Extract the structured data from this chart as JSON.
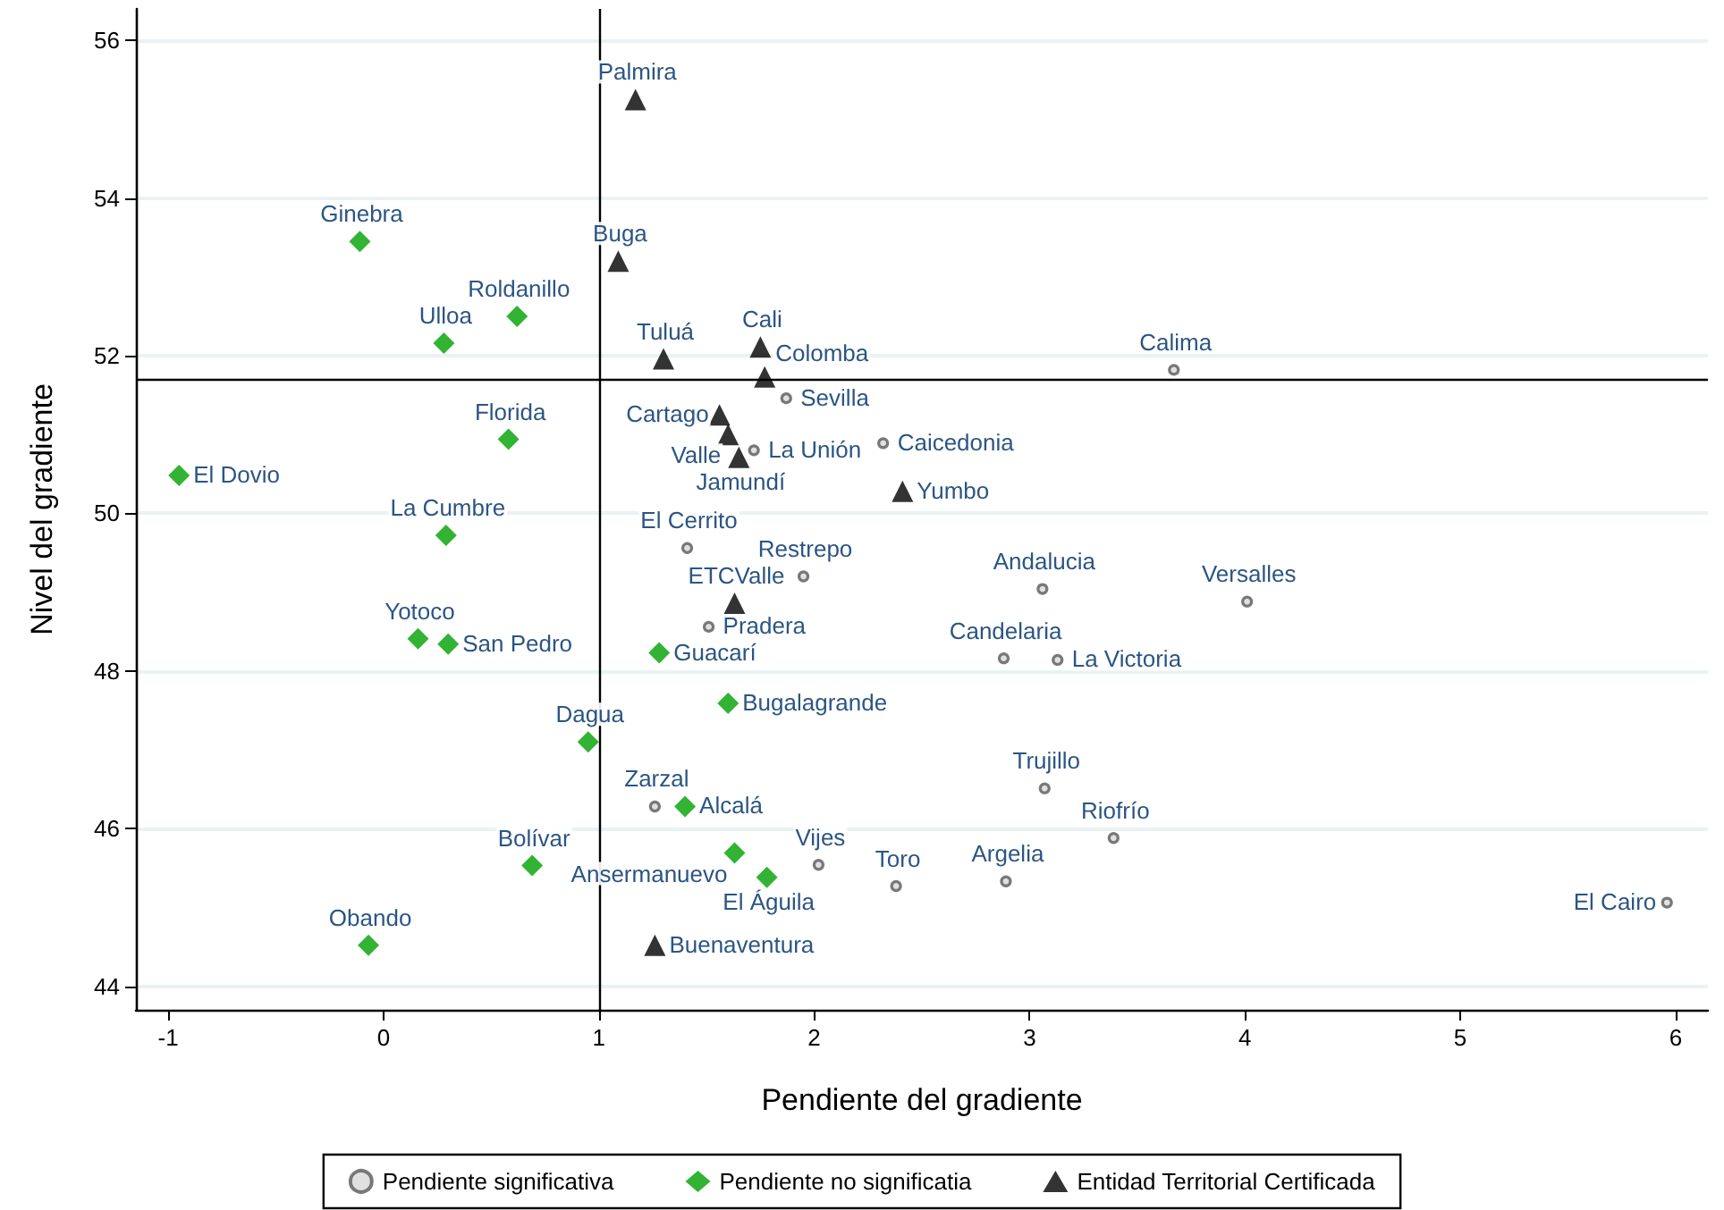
{
  "chart_data": {
    "type": "scatter",
    "xlabel": "Pendiente del gradiente",
    "ylabel": "Nivel del gradiente",
    "xlim": [
      -1.15,
      6.15
    ],
    "xticks": [
      -1,
      0,
      1,
      2,
      3,
      4,
      5,
      6
    ],
    "ylim": [
      43.7,
      56.4
    ],
    "yticks": [
      44,
      46,
      48,
      50,
      52,
      54,
      56
    ],
    "grid": "y",
    "legend": "bottom",
    "ref_lines": [
      {
        "axis": "x",
        "value": 1,
        "color": "#000000"
      },
      {
        "axis": "y",
        "value": 51.7,
        "color": "#000000"
      }
    ],
    "series": [
      {
        "name": "Pendiente significativa",
        "color": "#5a5a5a",
        "marker": "circle",
        "x": [
          3.67,
          1.87,
          2.32,
          1.72,
          1.41,
          1.95,
          1.51,
          3.06,
          4.01,
          2.88,
          3.13,
          3.07,
          3.39,
          1.26,
          2.02,
          2.38,
          2.89,
          5.96
        ],
        "values": [
          51.82,
          51.46,
          50.89,
          50.8,
          49.56,
          49.2,
          48.56,
          49.04,
          48.88,
          48.16,
          48.14,
          46.51,
          45.88,
          46.28,
          45.54,
          45.27,
          45.33,
          45.06
        ]
      },
      {
        "name": "Pendiente no significatia",
        "color": "#00a000",
        "marker": "diamond",
        "x": [
          -0.11,
          0.62,
          0.28,
          0.58,
          -0.95,
          0.29,
          0.16,
          0.3,
          0.95,
          0.69,
          -0.07,
          1.28,
          1.6,
          1.4,
          1.63,
          1.78
        ],
        "values": [
          53.45,
          52.5,
          52.16,
          50.94,
          50.48,
          49.72,
          48.41,
          48.34,
          47.1,
          45.53,
          44.52,
          48.23,
          47.59,
          46.28,
          45.69,
          45.38
        ]
      },
      {
        "name": "Entidad Territorial Certificada",
        "color": "#000000",
        "marker": "triangle",
        "x": [
          1.17,
          1.09,
          1.3,
          1.75,
          1.77,
          1.56,
          1.6,
          1.65,
          2.41,
          1.63,
          1.26
        ],
        "values": [
          55.25,
          53.2,
          51.96,
          52.11,
          51.73,
          51.25,
          51.0,
          50.71,
          50.28,
          48.86,
          44.52
        ]
      }
    ],
    "annotations": [
      {
        "text": "Calima",
        "x": 3.67,
        "y": 51.82
      },
      {
        "text": "Sevilla",
        "x": 1.87,
        "y": 51.46
      },
      {
        "text": "Caicedonia",
        "x": 2.32,
        "y": 50.89
      },
      {
        "text": "La Unión",
        "x": 1.72,
        "y": 50.8
      },
      {
        "text": "El Cerrito",
        "x": 1.41,
        "y": 49.56
      },
      {
        "text": "Restrepo",
        "x": 1.95,
        "y": 49.2
      },
      {
        "text": "Pradera",
        "x": 1.51,
        "y": 48.56
      },
      {
        "text": "Andalucia",
        "x": 3.06,
        "y": 49.04
      },
      {
        "text": "Versalles",
        "x": 4.01,
        "y": 48.88
      },
      {
        "text": "Candelaria",
        "x": 2.88,
        "y": 48.16
      },
      {
        "text": "La Victoria",
        "x": 3.13,
        "y": 48.14
      },
      {
        "text": "Trujillo",
        "x": 3.07,
        "y": 46.51
      },
      {
        "text": "Riofrío",
        "x": 3.39,
        "y": 45.88
      },
      {
        "text": "Zarzal",
        "x": 1.26,
        "y": 46.28
      },
      {
        "text": "Vijes",
        "x": 2.02,
        "y": 45.54
      },
      {
        "text": "Toro",
        "x": 2.38,
        "y": 45.27
      },
      {
        "text": "Argelia",
        "x": 2.89,
        "y": 45.33
      },
      {
        "text": "El Cairo",
        "x": 5.96,
        "y": 45.06
      },
      {
        "text": "Ginebra",
        "x": -0.11,
        "y": 53.45
      },
      {
        "text": "Roldanillo",
        "x": 0.62,
        "y": 52.5
      },
      {
        "text": "Ulloa",
        "x": 0.28,
        "y": 52.16
      },
      {
        "text": "Florida",
        "x": 0.58,
        "y": 50.94
      },
      {
        "text": "El Dovio",
        "x": -0.95,
        "y": 50.48
      },
      {
        "text": "La Cumbre",
        "x": 0.29,
        "y": 49.72
      },
      {
        "text": "Yotoco",
        "x": 0.16,
        "y": 48.41
      },
      {
        "text": "San Pedro",
        "x": 0.3,
        "y": 48.34
      },
      {
        "text": "Dagua",
        "x": 0.95,
        "y": 47.1
      },
      {
        "text": "Bolívar",
        "x": 0.69,
        "y": 45.53
      },
      {
        "text": "Obando",
        "x": -0.07,
        "y": 44.52
      },
      {
        "text": "Guacarí",
        "x": 1.28,
        "y": 48.23
      },
      {
        "text": "Bugalagrande",
        "x": 1.6,
        "y": 47.59
      },
      {
        "text": "Alcalá",
        "x": 1.4,
        "y": 46.28
      },
      {
        "text": "Ansermanuevo",
        "x": 1.63,
        "y": 45.69
      },
      {
        "text": "El Águila",
        "x": 1.78,
        "y": 45.38
      },
      {
        "text": "Palmira",
        "x": 1.17,
        "y": 55.25
      },
      {
        "text": "Buga",
        "x": 1.09,
        "y": 53.2
      },
      {
        "text": "Tuluá",
        "x": 1.3,
        "y": 51.96
      },
      {
        "text": "Cali",
        "x": 1.75,
        "y": 52.11
      },
      {
        "text": "Colomba",
        "x": 1.77,
        "y": 51.73
      },
      {
        "text": "Cartago",
        "x": 1.56,
        "y": 51.25
      },
      {
        "text": "Valle",
        "x": 1.6,
        "y": 51.0
      },
      {
        "text": "Jamundí",
        "x": 1.65,
        "y": 50.71
      },
      {
        "text": "Yumbo",
        "x": 2.41,
        "y": 50.28
      },
      {
        "text": "ETCValle",
        "x": 1.63,
        "y": 48.86
      },
      {
        "text": "Buenaventura",
        "x": 1.26,
        "y": 44.52
      }
    ]
  }
}
